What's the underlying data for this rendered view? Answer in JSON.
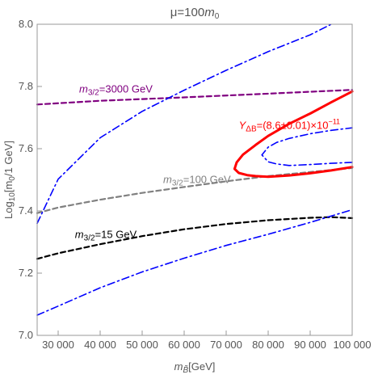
{
  "chart_data": {
    "type": "line",
    "title": {
      "base": "μ=100",
      "var": "m",
      "sub": "0"
    },
    "xlabel": {
      "var": "m",
      "sub": "B̃",
      "rest": "[GeV]"
    },
    "ylabel": {
      "pre": "Log",
      "sub": "10",
      "mid": "[m",
      "sub2": "0",
      "rest": "/1 GeV]"
    },
    "xlim": [
      25000,
      100000
    ],
    "ylim": [
      7.0,
      8.0
    ],
    "xticks": [
      {
        "value": 30000,
        "label": "30 000"
      },
      {
        "value": 40000,
        "label": "40 000"
      },
      {
        "value": 50000,
        "label": "50 000"
      },
      {
        "value": 60000,
        "label": "60 000"
      },
      {
        "value": 70000,
        "label": "70 000"
      },
      {
        "value": 80000,
        "label": "80 000"
      },
      {
        "value": 90000,
        "label": "90 000"
      },
      {
        "value": 100000,
        "label": "100 000"
      }
    ],
    "yticks": [
      {
        "value": 7.0,
        "label": "7.0"
      },
      {
        "value": 7.2,
        "label": "7.2"
      },
      {
        "value": 7.4,
        "label": "7.4"
      },
      {
        "value": 7.6,
        "label": "7.6"
      },
      {
        "value": 7.8,
        "label": "7.8"
      },
      {
        "value": 8.0,
        "label": "8.0"
      }
    ],
    "grid": false,
    "colors": {
      "purple": "#800080",
      "gray": "#808080",
      "black": "#000000",
      "blue": "#0000ff",
      "red": "#ff0000"
    },
    "series": [
      {
        "color": "#800080",
        "style": "dashed",
        "width": 2.2,
        "x": [
          25000,
          40000,
          60000,
          80000,
          100000
        ],
        "y": [
          7.742,
          7.754,
          7.765,
          7.777,
          7.789
        ]
      },
      {
        "color": "#808080",
        "style": "dashed",
        "width": 2.2,
        "x": [
          25000,
          30000,
          40000,
          50000,
          60000,
          70000,
          80000,
          90000,
          100000
        ],
        "y": [
          7.393,
          7.411,
          7.436,
          7.458,
          7.477,
          7.495,
          7.512,
          7.525,
          7.538
        ]
      },
      {
        "color": "#000000",
        "style": "dashed",
        "width": 2.2,
        "x": [
          25000,
          30000,
          40000,
          50000,
          60000,
          70000,
          80000,
          90000,
          95000,
          100000
        ],
        "y": [
          7.246,
          7.264,
          7.293,
          7.319,
          7.341,
          7.358,
          7.37,
          7.378,
          7.38,
          7.377
        ]
      },
      {
        "color": "#0000ff",
        "style": "dashdot",
        "width": 1.6,
        "x": [
          25000,
          30000,
          40000,
          50000,
          60000,
          70000,
          80000,
          90000,
          95000
        ],
        "y": [
          7.36,
          7.502,
          7.635,
          7.72,
          7.788,
          7.852,
          7.912,
          7.966,
          8.0
        ]
      },
      {
        "color": "#0000ff",
        "style": "dashdot",
        "width": 1.6,
        "x": [
          25000,
          30000,
          40000,
          50000,
          60000,
          70000,
          80000,
          90000,
          100000
        ],
        "y": [
          7.065,
          7.094,
          7.153,
          7.204,
          7.248,
          7.289,
          7.325,
          7.363,
          7.404
        ]
      },
      {
        "color": "#0000ff",
        "style": "dashdot",
        "width": 1.6,
        "x": [
          100000,
          95000,
          90000,
          85000,
          82000,
          80000,
          78500,
          80000,
          82000,
          85000,
          90000,
          95000,
          100000
        ],
        "y": [
          7.556,
          7.553,
          7.549,
          7.546,
          7.551,
          7.558,
          7.58,
          7.605,
          7.62,
          7.633,
          7.648,
          7.659,
          7.667
        ]
      },
      {
        "color": "#ff0000",
        "style": "solid",
        "width": 3,
        "x": [
          100000,
          95000,
          90000,
          85000,
          80000,
          77000,
          75000,
          73000,
          72000,
          72500,
          74000,
          77000,
          80000,
          85000,
          90000,
          95000,
          100000
        ],
        "y": [
          7.541,
          7.53,
          7.521,
          7.514,
          7.51,
          7.512,
          7.515,
          7.522,
          7.535,
          7.556,
          7.581,
          7.612,
          7.641,
          7.68,
          7.713,
          7.749,
          7.784
        ]
      }
    ],
    "annotations": [
      {
        "id": "m3000",
        "var": "m",
        "sub": "3/2",
        "text": "=3000 GeV",
        "color": "#800080",
        "x": 35000,
        "y": 7.78
      },
      {
        "id": "m100",
        "var": "m",
        "sub": "3/2",
        "text": "=100 GeV",
        "color": "#808080",
        "x": 55000,
        "y": 7.49
      },
      {
        "id": "m15",
        "var": "m",
        "sub": "3/2",
        "text": "=15 GeV",
        "color": "#000000",
        "x": 34000,
        "y": 7.313
      },
      {
        "id": "ydb",
        "var": "Y",
        "sub": "ΔB",
        "text": "=(8.6±0.01)×10",
        "sup": "−11",
        "color": "#ff0000",
        "x": 73000,
        "y": 7.664
      }
    ]
  }
}
